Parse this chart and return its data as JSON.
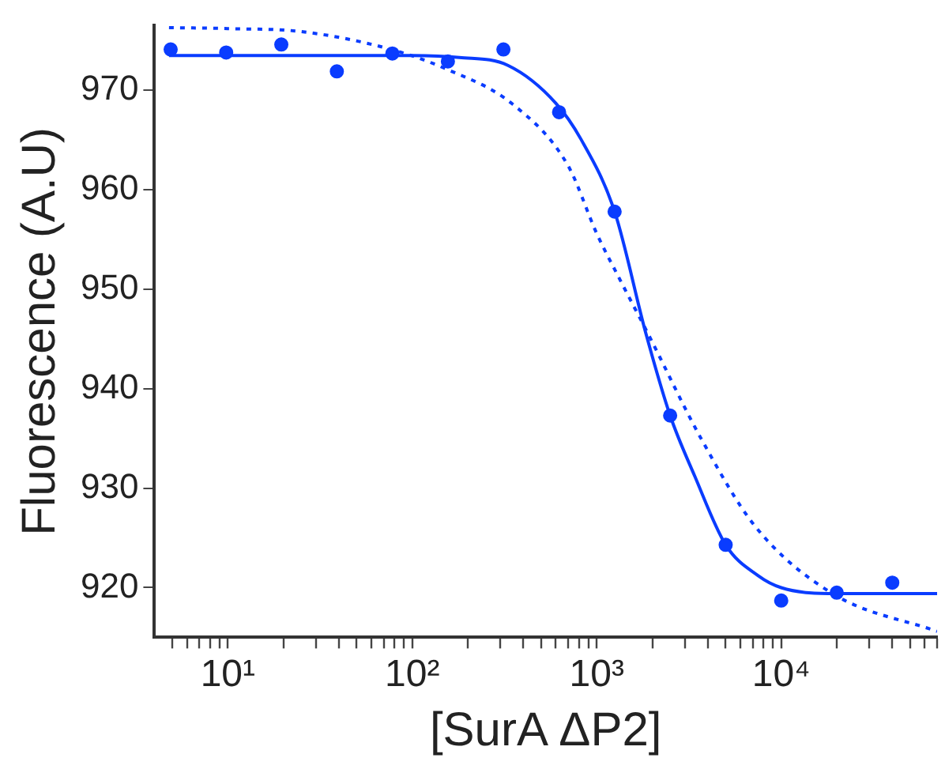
{
  "chart_data": {
    "type": "scatter",
    "xlabel": "[SurA ΔP2]",
    "ylabel": "Fluorescence (A.U)",
    "log": "x",
    "grid": false,
    "legend": false,
    "xlim": [
      4,
      70000
    ],
    "ylim": [
      915,
      976.5
    ],
    "xticks": [
      {
        "value": 5,
        "label": null
      },
      {
        "value": 6,
        "label": null
      },
      {
        "value": 7,
        "label": null
      },
      {
        "value": 8,
        "label": null
      },
      {
        "value": 9,
        "label": null
      },
      {
        "value": 10,
        "label": "10¹"
      },
      {
        "value": 20,
        "label": null
      },
      {
        "value": 30,
        "label": null
      },
      {
        "value": 40,
        "label": null
      },
      {
        "value": 50,
        "label": null
      },
      {
        "value": 60,
        "label": null
      },
      {
        "value": 70,
        "label": null
      },
      {
        "value": 80,
        "label": null
      },
      {
        "value": 90,
        "label": null
      },
      {
        "value": 100,
        "label": "10²"
      },
      {
        "value": 200,
        "label": null
      },
      {
        "value": 300,
        "label": null
      },
      {
        "value": 400,
        "label": null
      },
      {
        "value": 500,
        "label": null
      },
      {
        "value": 600,
        "label": null
      },
      {
        "value": 700,
        "label": null
      },
      {
        "value": 800,
        "label": null
      },
      {
        "value": 900,
        "label": null
      },
      {
        "value": 1000,
        "label": "10³"
      },
      {
        "value": 2000,
        "label": null
      },
      {
        "value": 3000,
        "label": null
      },
      {
        "value": 4000,
        "label": null
      },
      {
        "value": 5000,
        "label": null
      },
      {
        "value": 6000,
        "label": null
      },
      {
        "value": 7000,
        "label": null
      },
      {
        "value": 8000,
        "label": null
      },
      {
        "value": 9000,
        "label": null
      },
      {
        "value": 10000,
        "label": "10⁴"
      },
      {
        "value": 20000,
        "label": null
      },
      {
        "value": 30000,
        "label": null
      },
      {
        "value": 40000,
        "label": null
      },
      {
        "value": 50000,
        "label": null
      },
      {
        "value": 60000,
        "label": null
      },
      {
        "value": 70000,
        "label": null
      }
    ],
    "yticks": [
      920,
      930,
      940,
      950,
      960,
      970
    ],
    "series": [
      {
        "marker": "circle",
        "color": "#0a3cff",
        "x": [
          4.9,
          9.8,
          19.5,
          39,
          78,
          156,
          312,
          625,
          1250,
          2500,
          5000,
          10000,
          20000,
          40000
        ],
        "values": [
          974.1,
          973.8,
          974.6,
          971.9,
          973.7,
          972.9,
          974.1,
          967.8,
          957.8,
          937.3,
          924.3,
          918.7,
          919.5,
          920.5
        ]
      },
      {
        "type": "line",
        "marker": "none",
        "line_style": "solid",
        "color": "#0a3cff",
        "x": [
          4.8,
          100,
          180,
          330,
          600,
          820,
          1250,
          1850,
          2500,
          3400,
          5000,
          7500,
          10000,
          20000,
          70000
        ],
        "values": [
          973.5,
          973.5,
          973.3,
          972.5,
          968.7,
          965.1,
          957.8,
          945.5,
          937.3,
          931.2,
          924.3,
          921.2,
          920.0,
          919.4,
          919.4
        ]
      },
      {
        "type": "line",
        "marker": "none",
        "line_style": "dotted",
        "color": "#0a3cff",
        "x": [
          4.8,
          10,
          25,
          77,
          150,
          350,
          700,
          1000,
          1350,
          1900,
          3700,
          7200,
          19000,
          70000
        ],
        "values": [
          976.3,
          976.2,
          975.9,
          974.1,
          972.2,
          968.6,
          962.4,
          955.6,
          950.8,
          945.5,
          934.9,
          926.2,
          919.4,
          915.6
        ]
      }
    ]
  }
}
